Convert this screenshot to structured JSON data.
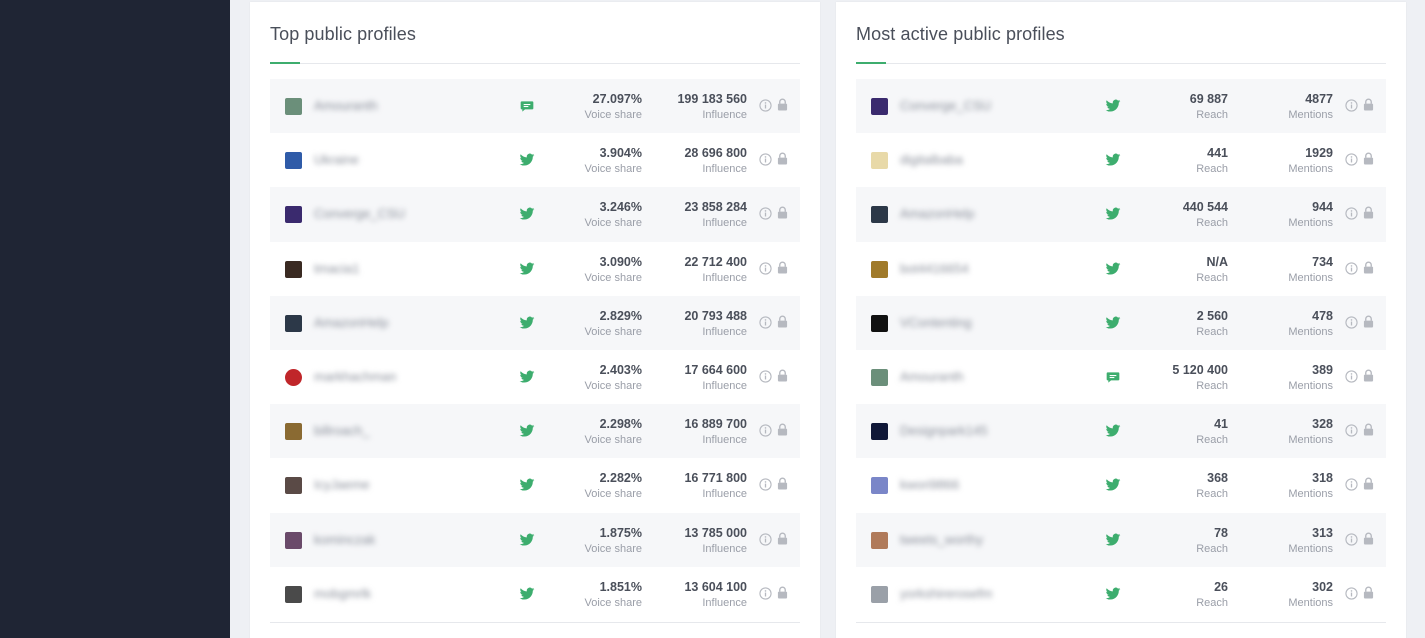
{
  "left_panel": {
    "title": "Top public profiles",
    "label1": "Voice share",
    "label2": "Influence",
    "rows": [
      {
        "name": "Amouranth",
        "network": "chat",
        "avatar_color": "#6b8f7a",
        "v1": "27.097%",
        "v2": "199 183 560"
      },
      {
        "name": "Ukraine",
        "network": "twitter",
        "avatar_color": "#2f5ba8",
        "v1": "3.904%",
        "v2": "28 696 800"
      },
      {
        "name": "Converge_CSU",
        "network": "twitter",
        "avatar_color": "#3a2a6e",
        "v1": "3.246%",
        "v2": "23 858 284"
      },
      {
        "name": "tmacia1",
        "network": "twitter",
        "avatar_color": "#3a2a22",
        "v1": "3.090%",
        "v2": "22 712 400"
      },
      {
        "name": "AmazonHelp",
        "network": "twitter",
        "avatar_color": "#2c3848",
        "v1": "2.829%",
        "v2": "20 793 488"
      },
      {
        "name": "markhachman",
        "network": "twitter",
        "avatar_color": "#c0262a",
        "v1": "2.403%",
        "v2": "17 664 600"
      },
      {
        "name": "billroach_",
        "network": "twitter",
        "avatar_color": "#8a6a32",
        "v1": "2.298%",
        "v2": "16 889 700"
      },
      {
        "name": "IcyJaeme",
        "network": "twitter",
        "avatar_color": "#5a4a46",
        "v1": "2.282%",
        "v2": "16 771 800"
      },
      {
        "name": "kominczak",
        "network": "twitter",
        "avatar_color": "#6a4a6a",
        "v1": "1.875%",
        "v2": "13 785 000"
      },
      {
        "name": "mobgmrlk",
        "network": "twitter",
        "avatar_color": "#4a4a4a",
        "v1": "1.851%",
        "v2": "13 604 100"
      }
    ]
  },
  "right_panel": {
    "title": "Most active public profiles",
    "label1": "Reach",
    "label2": "Mentions",
    "rows": [
      {
        "name": "Converge_CSU",
        "network": "twitter",
        "avatar_color": "#3a2a6e",
        "v1": "69 887",
        "v2": "4877"
      },
      {
        "name": "digitalbaba",
        "network": "twitter",
        "avatar_color": "#e8d9a8",
        "v1": "441",
        "v2": "1929"
      },
      {
        "name": "AmazonHelp",
        "network": "twitter",
        "avatar_color": "#2c3848",
        "v1": "440 544",
        "v2": "944"
      },
      {
        "name": "bot4416654",
        "network": "twitter",
        "avatar_color": "#a07a2a",
        "v1": "N/A",
        "v2": "734"
      },
      {
        "name": "VContenting",
        "network": "twitter",
        "avatar_color": "#111111",
        "v1": "2 560",
        "v2": "478"
      },
      {
        "name": "Amouranth",
        "network": "chat",
        "avatar_color": "#6b8f7a",
        "v1": "5 120 400",
        "v2": "389"
      },
      {
        "name": "Designpark145",
        "network": "twitter",
        "avatar_color": "#101838",
        "v1": "41",
        "v2": "328"
      },
      {
        "name": "kwori9866",
        "network": "twitter",
        "avatar_color": "#7a86c8",
        "v1": "368",
        "v2": "318"
      },
      {
        "name": "tweets_worthy",
        "network": "twitter",
        "avatar_color": "#b07a5a",
        "v1": "78",
        "v2": "313"
      },
      {
        "name": "yorkshirerosefm",
        "network": "twitter",
        "avatar_color": "#9aa0a8",
        "v1": "26",
        "v2": "302"
      }
    ]
  },
  "colors": {
    "accent": "#3dad6e",
    "sidebar": "#1f2534",
    "icon_gray": "#b6b9c0"
  }
}
